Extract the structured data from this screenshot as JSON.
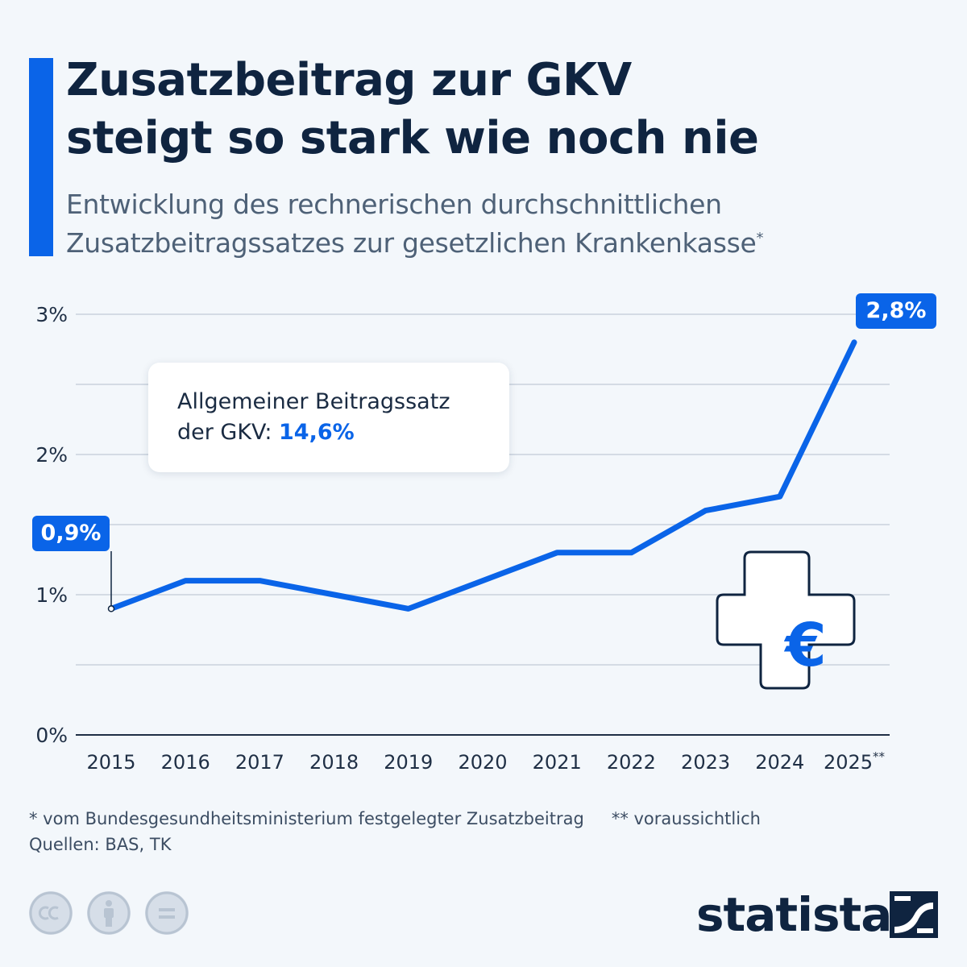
{
  "header": {
    "title_line1": "Zusatzbeitrag zur GKV",
    "title_line2": "steigt so stark wie noch nie",
    "subtitle_line1": "Entwicklung des rechnerischen durchschnittlichen",
    "subtitle_line2": "Zusatzbeitragssatzes zur gesetzlichen Krankenkasse",
    "subtitle_mark": "*"
  },
  "callout": {
    "line1": "Allgemeiner Beitragssatz",
    "line2_prefix": "der GKV: ",
    "line2_value": "14,6%"
  },
  "chart_data": {
    "type": "line",
    "title": "Zusatzbeitrag zur GKV steigt so stark wie noch nie",
    "x": [
      "2015",
      "2016",
      "2017",
      "2018",
      "2019",
      "2020",
      "2021",
      "2022",
      "2023",
      "2024",
      "2025"
    ],
    "x_tick_labels": [
      "2015",
      "2016",
      "2017",
      "2018",
      "2019",
      "2020",
      "2021",
      "2022",
      "2023",
      "2024",
      "2025**"
    ],
    "series": [
      {
        "values": [
          0.9,
          1.1,
          1.1,
          1.0,
          0.9,
          1.1,
          1.3,
          1.3,
          1.6,
          1.7,
          2.8
        ]
      }
    ],
    "y_ticks": [
      "0%",
      "1%",
      "2%",
      "3%"
    ],
    "ylim": [
      0,
      3
    ],
    "grid": true,
    "data_labels": [
      {
        "x": "2015",
        "text": "0,9%"
      },
      {
        "x": "2025",
        "text": "2,8%"
      }
    ],
    "line_color": "#0a64e8"
  },
  "icon": {
    "name": "cross-euro-icon",
    "symbol": "€"
  },
  "footer": {
    "note1": "* vom Bundesgesundheitsministerium festgelegter Zusatzbeitrag",
    "note2": "** voraussichtlich",
    "source": "Quellen: BAS, TK",
    "brand": "statista"
  },
  "colors": {
    "accent": "#0a64e8",
    "text": "#0f2440",
    "background": "#f3f7fb"
  }
}
